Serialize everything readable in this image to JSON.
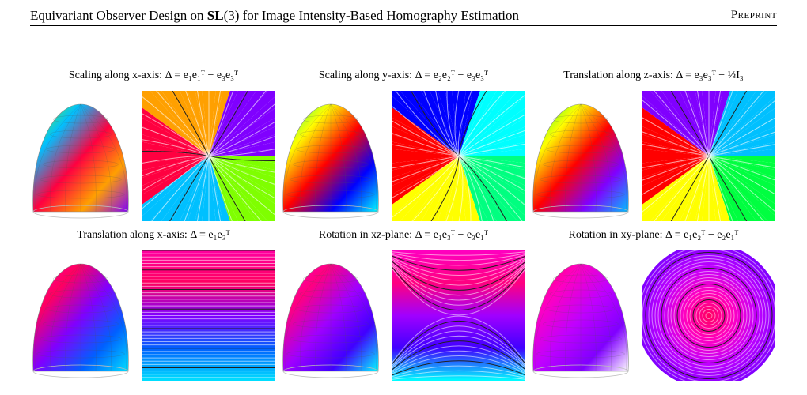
{
  "header": {
    "title_prefix": "Equivariant Observer Design on ",
    "title_group": "SL",
    "title_suffix": "(3) for Image Intensity-Based Homography Estimation",
    "tag": "Preprint"
  },
  "panels": [
    {
      "caption": "Scaling along x-axis: Δ = e₁e₁ᵀ − e₃e₃ᵀ",
      "style": "rainbow-radial",
      "colors": [
        "#7fff00",
        "#00c0ff",
        "#ff0040",
        "#ffa000",
        "#8000ff"
      ]
    },
    {
      "caption": "Scaling along y-axis: Δ = e₂e₂ᵀ − e₃e₃ᵀ",
      "style": "rainbow-radial-vertical",
      "colors": [
        "#00ff80",
        "#ffff00",
        "#ff0000",
        "#0000ff",
        "#00ffff"
      ]
    },
    {
      "caption": "Translation along z-axis: Δ = e₃e₃ᵀ − ⅓I₃",
      "style": "rainbow-star",
      "colors": [
        "#00ff40",
        "#ffff00",
        "#ff0000",
        "#8000ff",
        "#00c0ff"
      ]
    },
    {
      "caption": "Translation along x-axis: Δ = e₁e₃ᵀ",
      "style": "horizontal-bands",
      "colors": [
        "#ff00a0",
        "#ff0060",
        "#8000ff",
        "#0060ff",
        "#00e0ff"
      ]
    },
    {
      "caption": "Rotation in xz-plane: Δ = e₁e₃ᵀ − e₃e₁ᵀ",
      "style": "hyperbolic",
      "colors": [
        "#ff00c0",
        "#ff0080",
        "#a000ff",
        "#4000ff",
        "#00ffff"
      ]
    },
    {
      "caption": "Rotation in xy-plane: Δ = e₁e₂ᵀ − e₂e₁ᵀ",
      "style": "concentric",
      "colors": [
        "#ff0060",
        "#ff00c0",
        "#c000ff",
        "#8000ff",
        "#ffffff"
      ]
    }
  ]
}
